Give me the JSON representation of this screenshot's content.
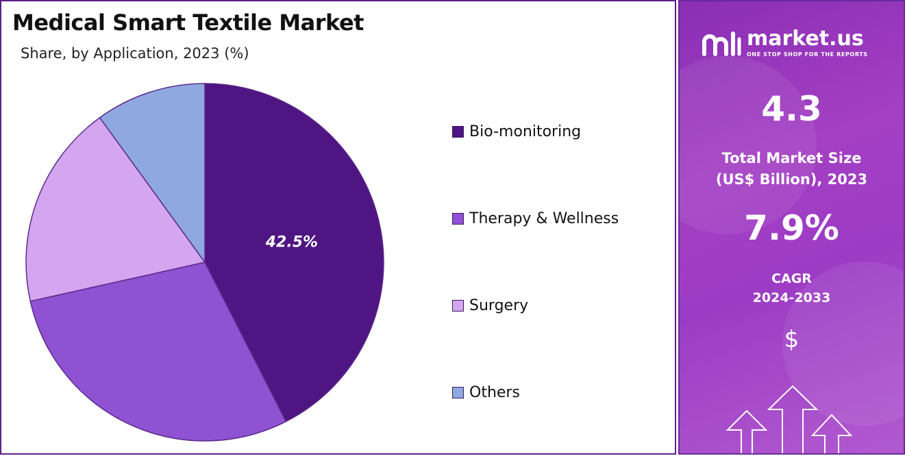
{
  "chart_data": {
    "type": "pie",
    "title": "Medical Smart Textile Market",
    "subtitle": "Share, by Application, 2023 (%)",
    "slices": [
      {
        "name": "Bio-monitoring",
        "value": 42.5,
        "color": "#4f1582",
        "label": "42.5%"
      },
      {
        "name": "Therapy & Wellness",
        "value": 29.0,
        "color": "#8f52d3",
        "label": ""
      },
      {
        "name": "Surgery",
        "value": 18.5,
        "color": "#d4a6ef",
        "label": ""
      },
      {
        "name": "Others",
        "value": 10.0,
        "color": "#8fa8df",
        "label": ""
      }
    ],
    "legend_position": "right"
  },
  "brand": {
    "name": "market.us",
    "tagline": "ONE STOP SHOP FOR THE REPORTS"
  },
  "stats": {
    "market_size_value": "4.3",
    "market_size_label_1": "Total Market Size",
    "market_size_label_2": "(US$ Billion), 2023",
    "cagr_value": "7.9%",
    "cagr_label_1": "CAGR",
    "cagr_label_2": "2024-2033",
    "currency_symbol": "$"
  }
}
